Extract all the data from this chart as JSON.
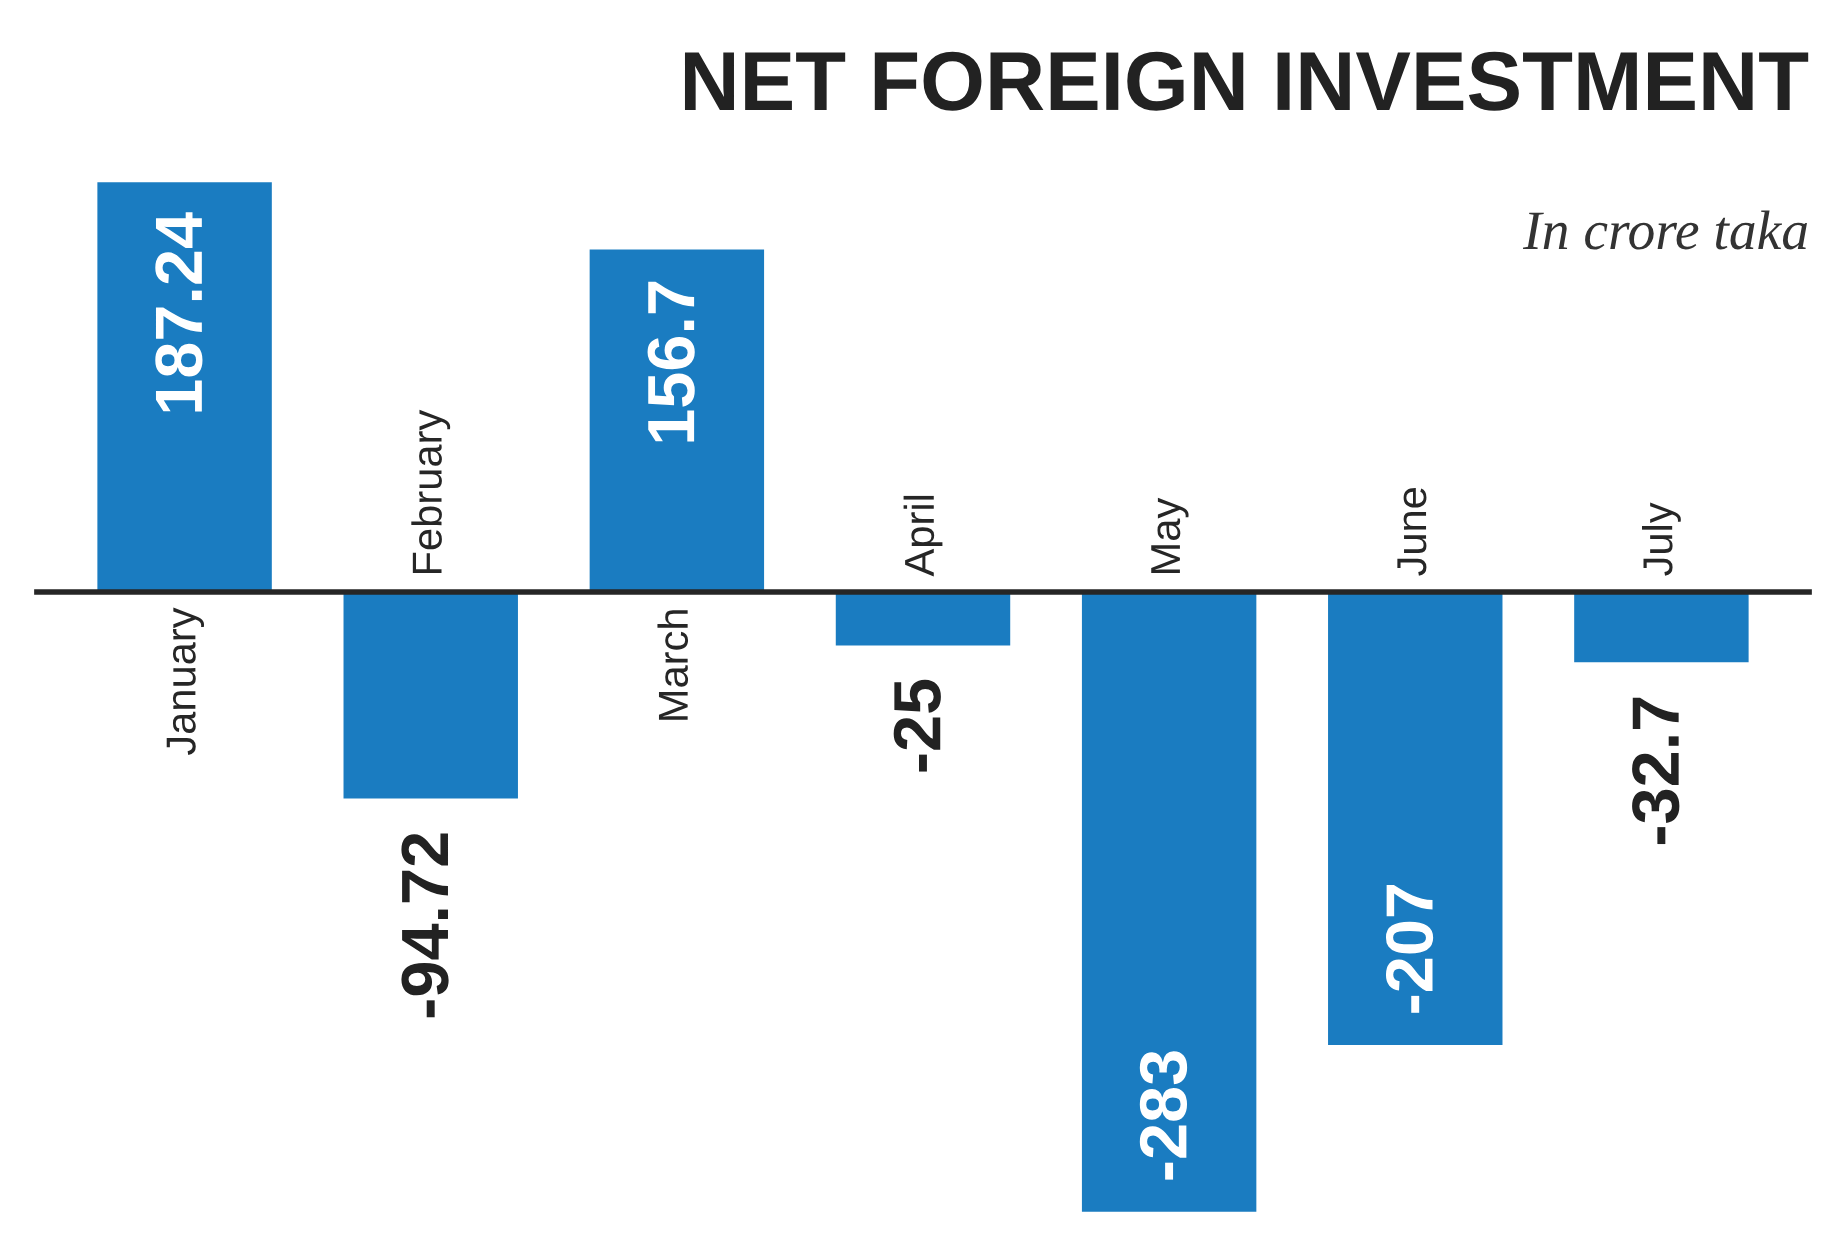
{
  "chart_data": {
    "type": "bar",
    "title": "NET FOREIGN INVESTMENT",
    "subtitle": "In crore taka",
    "categories": [
      "January",
      "February",
      "March",
      "April",
      "May",
      "June",
      "July"
    ],
    "values": [
      187.24,
      -94.72,
      156.7,
      -25,
      -283,
      -207,
      -32.7
    ],
    "color": "#1a7cc1",
    "data_labels": true
  }
}
